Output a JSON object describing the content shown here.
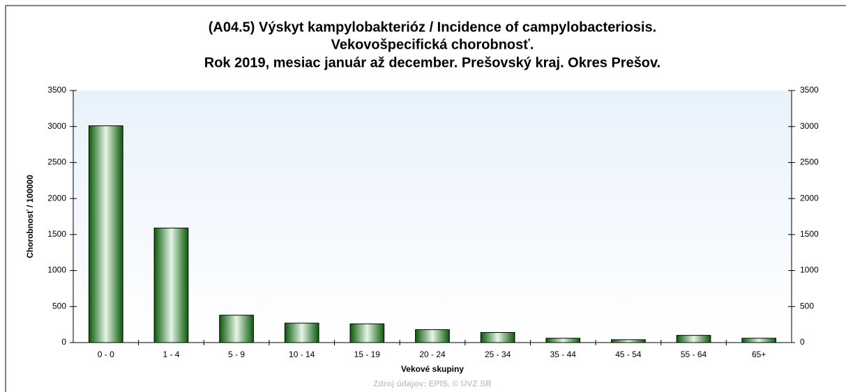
{
  "chart_data": {
    "type": "bar",
    "title": [
      "(A04.5) Výskyt kampylobakterióz / Incidence of campylobacteriosis.",
      "Vekovošpecifická chorobnosť.",
      "Rok 2019, mesiac január až december. Prešovský kraj. Okres Prešov."
    ],
    "x_label": "Vekové skupiny",
    "y_label": "Chorobnosť / 100000",
    "source": "Zdroj údajov: EPIS. © ÚVZ SR",
    "categories": [
      "0 - 0",
      "1 - 4",
      "5 - 9",
      "10 - 14",
      "15 - 19",
      "20 - 24",
      "25 - 34",
      "35 - 44",
      "45 - 54",
      "55 - 64",
      "65+"
    ],
    "values": [
      3010,
      1590,
      380,
      270,
      260,
      180,
      140,
      60,
      40,
      100,
      60
    ],
    "color": "#1e8a1e",
    "ylim": [
      0,
      3500
    ],
    "yticks": [
      0,
      500,
      1000,
      1500,
      2000,
      2500,
      3000,
      3500
    ],
    "y2lim": [
      0,
      3500
    ],
    "y2ticks": [
      0,
      500,
      1000,
      1500,
      2000,
      2500,
      3000,
      3500
    ]
  }
}
